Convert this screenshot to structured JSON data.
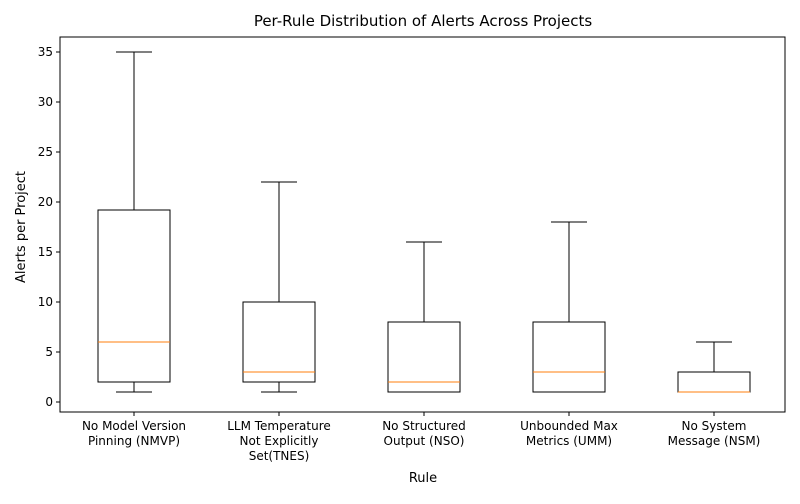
{
  "chart_data": {
    "type": "boxplot",
    "title": "Per-Rule Distribution of Alerts Across Projects",
    "xlabel": "Rule",
    "ylabel": "Alerts per Project",
    "ylim": [
      -1,
      36.5
    ],
    "yticks": [
      0,
      5,
      10,
      15,
      20,
      25,
      30,
      35
    ],
    "grid": false,
    "categories": [
      [
        "No Model Version",
        "Pinning (NMVP)"
      ],
      [
        "LLM Temperature",
        "Not Explicitly",
        "Set(TNES)"
      ],
      [
        "No Structured",
        "Output (NSO)"
      ],
      [
        "Unbounded Max",
        "Metrics (UMM)"
      ],
      [
        "No System",
        "Message (NSM)"
      ]
    ],
    "boxes": [
      {
        "whisker_low": 1,
        "q1": 2,
        "median": 6,
        "q3": 19.2,
        "whisker_high": 35
      },
      {
        "whisker_low": 1,
        "q1": 2,
        "median": 3,
        "q3": 10,
        "whisker_high": 22
      },
      {
        "whisker_low": 1,
        "q1": 1,
        "median": 2,
        "q3": 8,
        "whisker_high": 16
      },
      {
        "whisker_low": 1,
        "q1": 1,
        "median": 3,
        "q3": 8,
        "whisker_high": 18
      },
      {
        "whisker_low": 1,
        "q1": 1,
        "median": 1,
        "q3": 3,
        "whisker_high": 6
      }
    ],
    "colors": {
      "box": "#000000",
      "median": "#ff7f0e"
    }
  }
}
